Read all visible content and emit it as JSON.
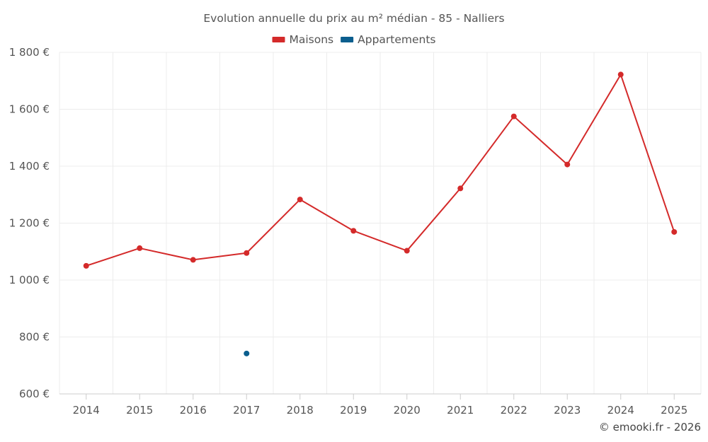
{
  "chart_data": {
    "type": "line",
    "title": "Evolution annuelle du prix au m² médian - 85 - Nalliers",
    "categories": [
      "2014",
      "2015",
      "2016",
      "2017",
      "2018",
      "2019",
      "2020",
      "2021",
      "2022",
      "2023",
      "2024",
      "2025"
    ],
    "series": [
      {
        "name": "Maisons",
        "color": "#d42a2a",
        "values": [
          1050,
          1112,
          1071,
          1095,
          1283,
          1173,
          1103,
          1322,
          1575,
          1406,
          1722,
          1169
        ]
      },
      {
        "name": "Appartements",
        "color": "#0b5e8e",
        "values": [
          null,
          null,
          null,
          742,
          null,
          null,
          null,
          null,
          null,
          null,
          null,
          null
        ]
      }
    ],
    "ylim": [
      600,
      1800
    ],
    "yticks": [
      600,
      800,
      1000,
      1200,
      1400,
      1600,
      1800
    ],
    "ytick_labels": [
      "600 €",
      "800 €",
      "1 000 €",
      "1 200 €",
      "1 400 €",
      "1 600 €",
      "1 800 €"
    ],
    "xlabel": "",
    "ylabel": "",
    "grid": true,
    "legend_position": "top-center"
  },
  "credit": "© emooki.fr - 2026"
}
